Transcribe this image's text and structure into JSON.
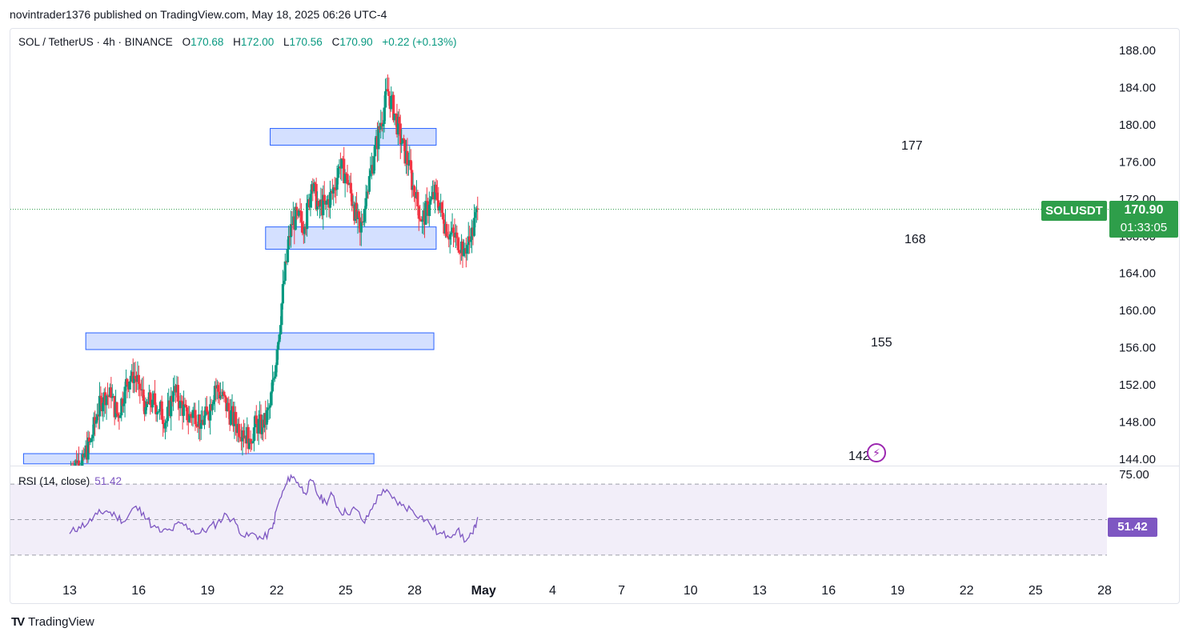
{
  "publisher": "novintrader1376 published on TradingView.com, May 18, 2025 06:26 UTC-4",
  "legend": {
    "symbol": "SOL / TetherUS · 4h · BINANCE",
    "o_label": "O",
    "o": "170.68",
    "h_label": "H",
    "h": "172.00",
    "l_label": "L",
    "l": "170.56",
    "c_label": "C",
    "c": "170.90",
    "change": "+0.22 (+0.13%)"
  },
  "rsi": {
    "label": "RSI (14, close)",
    "value": "51.42",
    "axis_label": "75.00",
    "color": "#7e57c2"
  },
  "price_tag": {
    "symbol": "SOLUSDT",
    "price": "170.90",
    "countdown": "01:33:05",
    "color": "#2e9e4a"
  },
  "zones": [
    {
      "label": "177",
      "low": 177.8,
      "high": 179.6,
      "from": 8.7,
      "to": 15.9
    },
    {
      "label": "168",
      "low": 166.6,
      "high": 169.0,
      "from": 8.5,
      "to": 15.9
    },
    {
      "label": "155",
      "low": 155.8,
      "high": 157.6,
      "from": 0.7,
      "to": 15.8
    },
    {
      "label": "142",
      "low": 143.5,
      "high": 144.6,
      "from": -2.0,
      "to": 13.2
    }
  ],
  "brand": {
    "logo": "TV",
    "name": "TradingView"
  },
  "chart_data": {
    "type": "candlestick",
    "title": "SOL / TetherUS · 4h · BINANCE",
    "ylim": [
      144,
      188
    ],
    "y_ticks": [
      "188.00",
      "184.00",
      "180.00",
      "176.00",
      "172.00",
      "168.00",
      "164.00",
      "160.00",
      "156.00",
      "152.00",
      "148.00",
      "144.00"
    ],
    "x_ticks": [
      "13",
      "16",
      "19",
      "22",
      "25",
      "28",
      "May",
      "4",
      "7",
      "10",
      "13",
      "16",
      "19",
      "22",
      "25",
      "28"
    ],
    "last_price": 170.9,
    "close_series": [
      [
        0.0,
        142.8
      ],
      [
        0.3,
        143.6
      ],
      [
        0.6,
        144.2
      ],
      [
        0.9,
        145.9
      ],
      [
        1.2,
        148.8
      ],
      [
        1.5,
        151.2
      ],
      [
        1.8,
        150.6
      ],
      [
        2.1,
        148.6
      ],
      [
        2.4,
        151.8
      ],
      [
        2.7,
        153.4
      ],
      [
        3.0,
        152.1
      ],
      [
        3.3,
        149.6
      ],
      [
        3.6,
        150.4
      ],
      [
        3.9,
        149.4
      ],
      [
        4.2,
        148.1
      ],
      [
        4.5,
        151.3
      ],
      [
        4.8,
        150.3
      ],
      [
        5.1,
        148.2
      ],
      [
        5.4,
        149.3
      ],
      [
        5.7,
        147.9
      ],
      [
        6.0,
        148.8
      ],
      [
        6.3,
        151.9
      ],
      [
        6.6,
        150.8
      ],
      [
        6.9,
        149.2
      ],
      [
        7.2,
        147.8
      ],
      [
        7.5,
        147.1
      ],
      [
        7.8,
        146.2
      ],
      [
        8.1,
        147.8
      ],
      [
        8.4,
        147.4
      ],
      [
        8.7,
        149.8
      ],
      [
        9.0,
        155.8
      ],
      [
        9.3,
        163.2
      ],
      [
        9.6,
        169.3
      ],
      [
        9.9,
        170.2
      ],
      [
        10.2,
        169.0
      ],
      [
        10.5,
        173.6
      ],
      [
        10.8,
        171.2
      ],
      [
        11.1,
        171.4
      ],
      [
        11.4,
        172.6
      ],
      [
        11.7,
        175.5
      ],
      [
        12.0,
        174.7
      ],
      [
        12.3,
        171.4
      ],
      [
        12.6,
        168.4
      ],
      [
        12.9,
        172.8
      ],
      [
        13.2,
        176.6
      ],
      [
        13.5,
        180.2
      ],
      [
        13.8,
        183.6
      ],
      [
        14.1,
        181.2
      ],
      [
        14.4,
        178.0
      ],
      [
        14.7,
        175.7
      ],
      [
        15.0,
        172.1
      ],
      [
        15.3,
        169.7
      ],
      [
        15.6,
        171.4
      ],
      [
        15.9,
        172.7
      ],
      [
        16.2,
        169.8
      ],
      [
        16.5,
        168.2
      ],
      [
        16.8,
        167.8
      ],
      [
        17.1,
        166.6
      ],
      [
        17.4,
        167.6
      ],
      [
        17.7,
        170.9
      ]
    ],
    "rsi_series": [
      [
        0.0,
        42
      ],
      [
        0.4,
        46
      ],
      [
        0.8,
        48
      ],
      [
        1.2,
        53
      ],
      [
        1.6,
        55
      ],
      [
        2.0,
        52
      ],
      [
        2.4,
        49
      ],
      [
        2.8,
        57
      ],
      [
        3.2,
        54
      ],
      [
        3.6,
        46
      ],
      [
        4.0,
        43
      ],
      [
        4.4,
        44
      ],
      [
        4.8,
        48
      ],
      [
        5.2,
        45
      ],
      [
        5.6,
        42
      ],
      [
        6.0,
        45
      ],
      [
        6.4,
        48
      ],
      [
        6.8,
        53
      ],
      [
        7.2,
        48
      ],
      [
        7.6,
        40
      ],
      [
        8.0,
        42
      ],
      [
        8.4,
        39
      ],
      [
        8.8,
        45
      ],
      [
        9.0,
        57
      ],
      [
        9.3,
        67
      ],
      [
        9.6,
        75
      ],
      [
        9.9,
        71
      ],
      [
        10.2,
        65
      ],
      [
        10.5,
        72
      ],
      [
        10.8,
        63
      ],
      [
        11.1,
        60
      ],
      [
        11.4,
        64
      ],
      [
        11.7,
        55
      ],
      [
        12.0,
        54
      ],
      [
        12.4,
        56
      ],
      [
        12.8,
        48
      ],
      [
        13.2,
        59
      ],
      [
        13.6,
        67
      ],
      [
        14.0,
        62
      ],
      [
        14.4,
        58
      ],
      [
        14.8,
        56
      ],
      [
        15.2,
        52
      ],
      [
        15.6,
        48
      ],
      [
        16.0,
        42
      ],
      [
        16.4,
        41
      ],
      [
        16.8,
        44
      ],
      [
        17.2,
        38
      ],
      [
        17.5,
        42
      ],
      [
        17.7,
        51.42
      ]
    ],
    "rsi_ylim": [
      20,
      80
    ],
    "rsi_bands": {
      "upper": 70,
      "middle": 50,
      "lower": 30
    }
  }
}
